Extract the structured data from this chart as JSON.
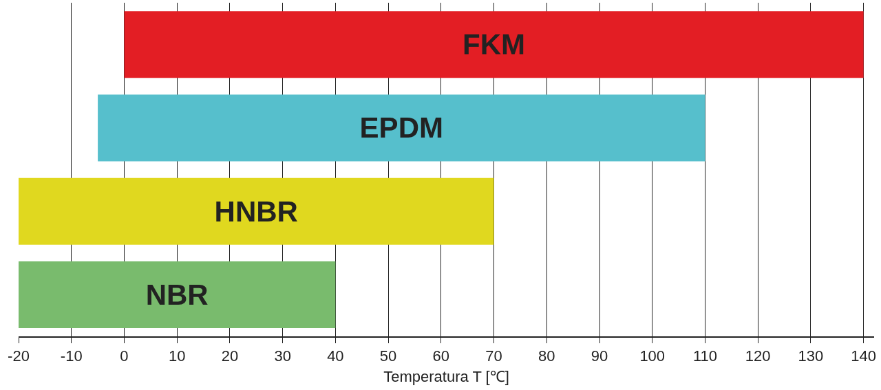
{
  "chart_data": {
    "type": "bar",
    "orientation": "horizontal",
    "xlabel": "Temperatura T [℃]",
    "categories": [
      "FKM",
      "EPDM",
      "HNBR",
      "NBR"
    ],
    "base": [
      0,
      -5,
      -20,
      -20
    ],
    "values": [
      140,
      115,
      90,
      60
    ],
    "colors": [
      "#e31e24",
      "#56bfcc",
      "#e0d81f",
      "#79bb6d"
    ],
    "xlim": [
      -20,
      142
    ],
    "xticks": [
      -20,
      -10,
      0,
      10,
      20,
      30,
      40,
      50,
      60,
      70,
      80,
      90,
      100,
      110,
      120,
      130,
      140
    ],
    "grid": "x",
    "tick_labels": "x"
  }
}
